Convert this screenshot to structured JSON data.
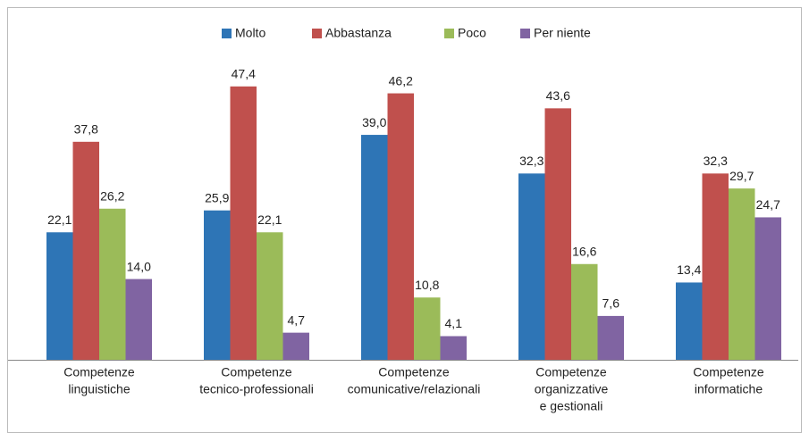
{
  "chart_data": {
    "type": "bar",
    "categories": [
      [
        "Competenze",
        "linguistiche"
      ],
      [
        "Competenze",
        "tecnico-professionali"
      ],
      [
        "Competenze",
        "comunicative/relazionali"
      ],
      [
        "Competenze",
        "organizzative",
        "e gestionali"
      ],
      [
        "Competenze",
        "informatiche"
      ]
    ],
    "series": [
      {
        "name": "Molto",
        "color": "#2e75b6",
        "values": [
          22.1,
          25.9,
          39.0,
          32.3,
          13.4
        ],
        "value_labels": [
          "22,1",
          "25,9",
          "39,0",
          "32,3",
          "13,4"
        ]
      },
      {
        "name": "Abbastanza",
        "color": "#c0504d",
        "values": [
          37.8,
          47.4,
          46.2,
          43.6,
          32.3
        ],
        "value_labels": [
          "37,8",
          "47,4",
          "46,2",
          "43,6",
          "32,3"
        ]
      },
      {
        "name": "Poco",
        "color": "#9bbb59",
        "values": [
          26.2,
          22.1,
          10.8,
          16.6,
          29.7
        ],
        "value_labels": [
          "26,2",
          "22,1",
          "10,8",
          "16,6",
          "29,7"
        ]
      },
      {
        "name": "Per niente",
        "color": "#8064a2",
        "values": [
          14.0,
          4.7,
          4.1,
          7.6,
          24.7
        ],
        "value_labels": [
          "14,0",
          "4,7",
          "4,1",
          "7,6",
          "24,7"
        ]
      }
    ],
    "ylim": [
      0,
      50
    ],
    "legend": "top"
  }
}
